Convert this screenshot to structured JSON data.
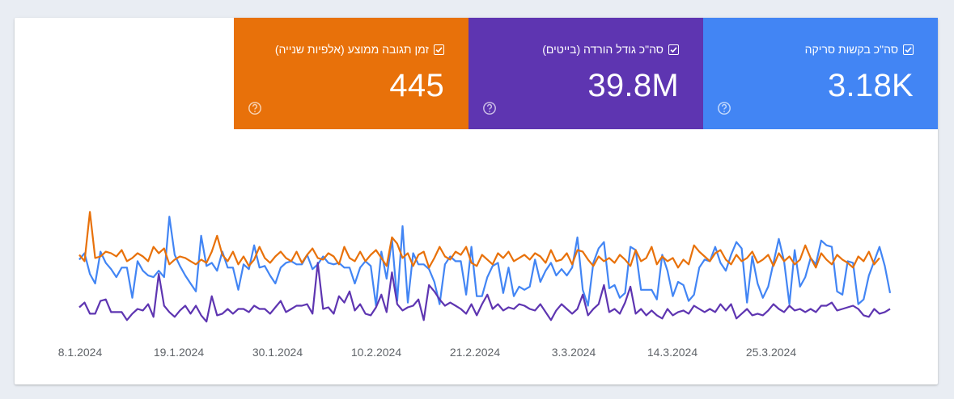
{
  "colors": {
    "crawl_requests": "#4285f4",
    "download_size": "#5e35b1",
    "response_time": "#e8710a",
    "background": "#e9edf3"
  },
  "metrics": [
    {
      "label": "סה\"כ בקשות סריקה",
      "value": "3.18K",
      "checked": true,
      "color": "#4285f4",
      "icon": "help-circle-icon"
    },
    {
      "label": "סה\"כ גודל הורדה (בייטים)",
      "value": "39.8M",
      "checked": true,
      "color": "#5e35b1",
      "icon": "help-circle-icon"
    },
    {
      "label": "זמן תגובה ממוצע (אלפיות שנייה)",
      "value": "445",
      "checked": true,
      "color": "#e8710a",
      "icon": "help-circle-icon"
    }
  ],
  "chart_data": {
    "type": "line",
    "x_tick_labels": [
      "8.1.2024",
      "19.1.2024",
      "30.1.2024",
      "10.2.2024",
      "21.2.2024",
      "3.3.2024",
      "14.3.2024",
      "25.3.2024"
    ],
    "grid": false,
    "legend": "none",
    "y_axis_labels_visible": false,
    "series": [
      {
        "name": "סה\"כ בקשות סריקה",
        "color": "#4285f4",
        "values": [
          0.47,
          0.51,
          0.38,
          0.32,
          0.52,
          0.45,
          0.41,
          0.36,
          0.42,
          0.42,
          0.23,
          0.46,
          0.4,
          0.37,
          0.36,
          0.4,
          0.36,
          0.74,
          0.5,
          0.43,
          0.37,
          0.32,
          0.27,
          0.62,
          0.43,
          0.45,
          0.4,
          0.52,
          0.42,
          0.42,
          0.28,
          0.44,
          0.41,
          0.56,
          0.42,
          0.43,
          0.37,
          0.32,
          0.42,
          0.45,
          0.46,
          0.44,
          0.44,
          0.5,
          0.41,
          0.44,
          0.49,
          0.45,
          0.44,
          0.45,
          0.42,
          0.42,
          0.32,
          0.42,
          0.46,
          0.43,
          0.18,
          0.52,
          0.35,
          0.6,
          0.21,
          0.68,
          0.2,
          0.51,
          0.44,
          0.44,
          0.41,
          0.33,
          0.19,
          0.44,
          0.49,
          0.46,
          0.46,
          0.25,
          0.55,
          0.24,
          0.24,
          0.36,
          0.43,
          0.45,
          0.26,
          0.42,
          0.24,
          0.3,
          0.28,
          0.3,
          0.47,
          0.33,
          0.4,
          0.45,
          0.37,
          0.41,
          0.37,
          0.42,
          0.61,
          0.28,
          0.18,
          0.45,
          0.54,
          0.58,
          0.29,
          0.31,
          0.23,
          0.26,
          0.55,
          0.53,
          0.28,
          0.28,
          0.28,
          0.22,
          0.5,
          0.4,
          0.24,
          0.33,
          0.31,
          0.21,
          0.25,
          0.42,
          0.47,
          0.46,
          0.55,
          0.45,
          0.4,
          0.5,
          0.58,
          0.54,
          0.2,
          0.49,
          0.32,
          0.23,
          0.3,
          0.45,
          0.6,
          0.46,
          0.19,
          0.53,
          0.3,
          0.36,
          0.48,
          0.44,
          0.59,
          0.56,
          0.55,
          0.27,
          0.25,
          0.46,
          0.45,
          0.19,
          0.22,
          0.37,
          0.46,
          0.55,
          0.43,
          0.26
        ]
      },
      {
        "name": "סה\"כ גודל הורדה (בייטים)",
        "color": "#5e35b1",
        "values": [
          0.17,
          0.2,
          0.13,
          0.13,
          0.21,
          0.22,
          0.14,
          0.14,
          0.14,
          0.09,
          0.13,
          0.16,
          0.15,
          0.19,
          0.11,
          0.38,
          0.18,
          0.14,
          0.11,
          0.15,
          0.18,
          0.13,
          0.18,
          0.12,
          0.08,
          0.24,
          0.12,
          0.13,
          0.16,
          0.13,
          0.16,
          0.16,
          0.14,
          0.18,
          0.16,
          0.16,
          0.13,
          0.17,
          0.21,
          0.14,
          0.16,
          0.18,
          0.18,
          0.19,
          0.13,
          0.45,
          0.16,
          0.17,
          0.13,
          0.24,
          0.2,
          0.27,
          0.15,
          0.19,
          0.13,
          0.12,
          0.17,
          0.25,
          0.14,
          0.39,
          0.19,
          0.15,
          0.17,
          0.18,
          0.22,
          0.09,
          0.31,
          0.27,
          0.22,
          0.18,
          0.2,
          0.18,
          0.16,
          0.13,
          0.19,
          0.12,
          0.19,
          0.25,
          0.16,
          0.19,
          0.15,
          0.17,
          0.16,
          0.19,
          0.18,
          0.16,
          0.15,
          0.19,
          0.14,
          0.09,
          0.15,
          0.19,
          0.16,
          0.13,
          0.16,
          0.25,
          0.12,
          0.16,
          0.19,
          0.31,
          0.14,
          0.16,
          0.13,
          0.2,
          0.3,
          0.13,
          0.16,
          0.12,
          0.15,
          0.12,
          0.1,
          0.16,
          0.12,
          0.14,
          0.15,
          0.13,
          0.18,
          0.16,
          0.14,
          0.16,
          0.14,
          0.19,
          0.15,
          0.19,
          0.1,
          0.13,
          0.16,
          0.12,
          0.13,
          0.12,
          0.15,
          0.19,
          0.16,
          0.14,
          0.18,
          0.15,
          0.16,
          0.14,
          0.16,
          0.14,
          0.18,
          0.18,
          0.2,
          0.15,
          0.16,
          0.17,
          0.18,
          0.16,
          0.12,
          0.11,
          0.16,
          0.13,
          0.14,
          0.16
        ]
      },
      {
        "name": "זמן תגובה ממוצע (אלפיות שנייה)",
        "color": "#e8710a",
        "values": [
          0.5,
          0.46,
          0.77,
          0.48,
          0.49,
          0.52,
          0.51,
          0.49,
          0.53,
          0.46,
          0.48,
          0.51,
          0.49,
          0.46,
          0.55,
          0.51,
          0.54,
          0.44,
          0.47,
          0.49,
          0.48,
          0.46,
          0.44,
          0.47,
          0.45,
          0.52,
          0.62,
          0.5,
          0.46,
          0.52,
          0.44,
          0.49,
          0.43,
          0.47,
          0.55,
          0.48,
          0.45,
          0.49,
          0.52,
          0.48,
          0.46,
          0.52,
          0.45,
          0.5,
          0.54,
          0.48,
          0.47,
          0.51,
          0.49,
          0.44,
          0.55,
          0.48,
          0.46,
          0.52,
          0.46,
          0.5,
          0.53,
          0.48,
          0.43,
          0.61,
          0.57,
          0.48,
          0.51,
          0.43,
          0.5,
          0.52,
          0.42,
          0.48,
          0.55,
          0.49,
          0.47,
          0.52,
          0.5,
          0.55,
          0.45,
          0.43,
          0.5,
          0.47,
          0.44,
          0.51,
          0.48,
          0.52,
          0.46,
          0.48,
          0.5,
          0.47,
          0.51,
          0.49,
          0.45,
          0.53,
          0.46,
          0.47,
          0.51,
          0.44,
          0.53,
          0.52,
          0.47,
          0.43,
          0.49,
          0.46,
          0.48,
          0.45,
          0.5,
          0.47,
          0.43,
          0.53,
          0.46,
          0.48,
          0.55,
          0.44,
          0.49,
          0.46,
          0.48,
          0.42,
          0.47,
          0.44,
          0.56,
          0.52,
          0.49,
          0.46,
          0.51,
          0.53,
          0.47,
          0.44,
          0.5,
          0.46,
          0.48,
          0.52,
          0.45,
          0.47,
          0.5,
          0.43,
          0.51,
          0.46,
          0.49,
          0.44,
          0.47,
          0.56,
          0.48,
          0.42,
          0.51,
          0.47,
          0.44,
          0.5,
          0.47,
          0.45,
          0.42,
          0.49,
          0.46,
          0.52,
          0.44,
          0.48
        ]
      }
    ]
  }
}
